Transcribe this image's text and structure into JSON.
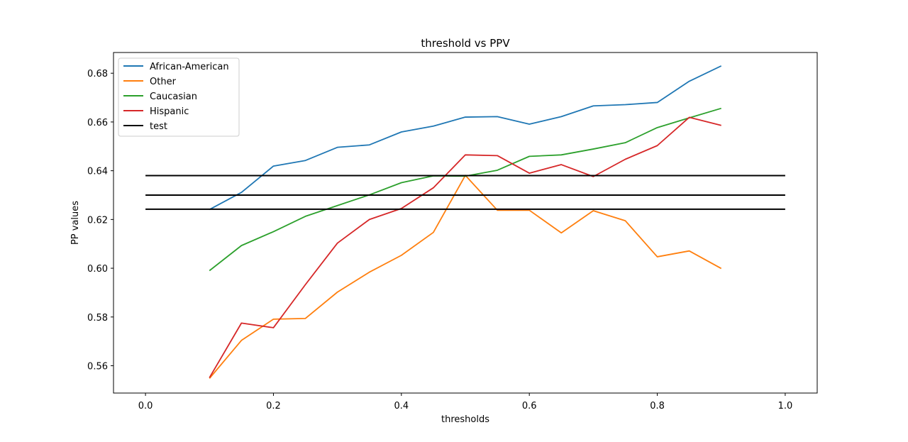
{
  "chart_data": {
    "type": "line",
    "title": "threshold vs PPV",
    "xlabel": "thresholds",
    "ylabel": "PP values",
    "xlim": [
      -0.05,
      1.05
    ],
    "ylim": [
      0.5488,
      0.6885
    ],
    "xticks": [
      0.0,
      0.2,
      0.4,
      0.6,
      0.8,
      1.0
    ],
    "xtick_labels": [
      "0.0",
      "0.2",
      "0.4",
      "0.6",
      "0.8",
      "1.0"
    ],
    "yticks": [
      0.56,
      0.58,
      0.6,
      0.62,
      0.64,
      0.66,
      0.68
    ],
    "ytick_labels": [
      "0.56",
      "0.58",
      "0.60",
      "0.62",
      "0.64",
      "0.66",
      "0.68"
    ],
    "grid": false,
    "legend_position": "top-left",
    "series": [
      {
        "name": "African-American",
        "color": "#1f77b4",
        "x": [
          0.1,
          0.15,
          0.2,
          0.25,
          0.3,
          0.35,
          0.4,
          0.45,
          0.5,
          0.55,
          0.6,
          0.65,
          0.7,
          0.75,
          0.8,
          0.85,
          0.9
        ],
        "y": [
          0.6241,
          0.6311,
          0.6419,
          0.6442,
          0.6496,
          0.6506,
          0.6559,
          0.6583,
          0.662,
          0.6622,
          0.6591,
          0.6622,
          0.6666,
          0.6671,
          0.668,
          0.6767,
          0.683
        ]
      },
      {
        "name": "Other",
        "color": "#ff7f0e",
        "x": [
          0.1,
          0.15,
          0.2,
          0.25,
          0.3,
          0.35,
          0.4,
          0.45,
          0.5,
          0.55,
          0.6,
          0.65,
          0.7,
          0.75,
          0.8,
          0.85,
          0.9
        ],
        "y": [
          0.5548,
          0.5704,
          0.5791,
          0.5794,
          0.5902,
          0.5984,
          0.6053,
          0.6147,
          0.6381,
          0.6238,
          0.6238,
          0.6145,
          0.6236,
          0.6195,
          0.6047,
          0.6071,
          0.5999
        ]
      },
      {
        "name": "Caucasian",
        "color": "#2ca02c",
        "x": [
          0.1,
          0.15,
          0.2,
          0.25,
          0.3,
          0.35,
          0.4,
          0.45,
          0.5,
          0.55,
          0.6,
          0.65,
          0.7,
          0.75,
          0.8,
          0.85,
          0.9
        ],
        "y": [
          0.599,
          0.6093,
          0.615,
          0.6213,
          0.6257,
          0.6301,
          0.6351,
          0.6379,
          0.6378,
          0.6402,
          0.6459,
          0.6465,
          0.6489,
          0.6515,
          0.6577,
          0.6617,
          0.6656
        ]
      },
      {
        "name": "Hispanic",
        "color": "#d62728",
        "x": [
          0.1,
          0.15,
          0.2,
          0.25,
          0.3,
          0.35,
          0.4,
          0.45,
          0.5,
          0.55,
          0.6,
          0.65,
          0.7,
          0.75,
          0.8,
          0.85,
          0.9
        ],
        "y": [
          0.5551,
          0.5775,
          0.5756,
          0.5933,
          0.6103,
          0.62,
          0.6245,
          0.633,
          0.6465,
          0.6462,
          0.639,
          0.6425,
          0.6376,
          0.6447,
          0.6503,
          0.6619,
          0.6586
        ]
      },
      {
        "name": "test",
        "color": "#000000",
        "hlines": [
          0.638,
          0.63,
          0.6242
        ],
        "x": [
          0.0,
          1.0
        ]
      }
    ]
  }
}
